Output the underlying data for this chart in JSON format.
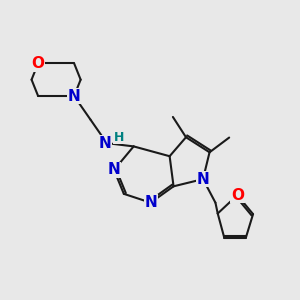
{
  "background_color": "#e8e8e8",
  "atom_colors": {
    "N": "#0000cc",
    "O": "#ff0000",
    "H": "#008080"
  },
  "bond_color": "#1a1a1a",
  "bond_width": 1.5,
  "font_size_atom": 11,
  "font_size_H": 9,
  "xlim": [
    0.5,
    9.5
  ],
  "ylim": [
    1.5,
    9.8
  ]
}
